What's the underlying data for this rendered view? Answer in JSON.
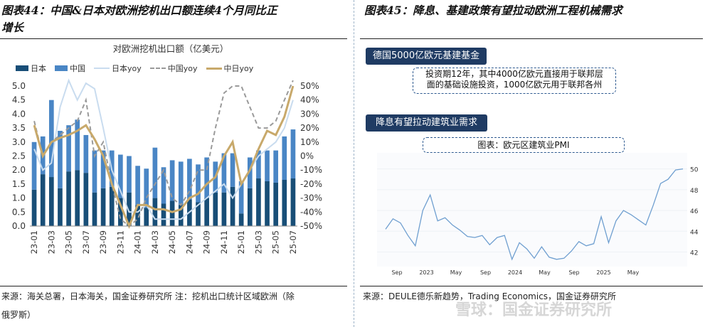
{
  "left_panel": {
    "title_line1": "图表44：中国&日本对欧洲挖机出口额连续4个月同比正",
    "title_line2": "增长",
    "source": "来源：海关总署，日本海关，国金证券研究所 注：挖机出口统计区域欧洲（除",
    "source_line2": "俄罗斯）"
  },
  "right_panel": {
    "title": "图表45：降息、基建政策有望拉动欧洲工程机械需求",
    "banner1": "德国5000亿欧元基建基金",
    "box1_line1": "投资期12年，其中4000亿欧元直接用于联邦层",
    "box1_line2": "面的基础设施投资，1000亿欧元用于联邦各州",
    "banner2": "降息有望拉动建筑业需求",
    "box2": "图表：欧元区建筑业PMI",
    "source": "来源：DEULE德乐新趋势，Trading Economics，国金证券研究所"
  },
  "watermark": "雪球：国金证券研究所",
  "colors": {
    "japan": "#184e77",
    "china": "#4a86c5",
    "japan_yoy": "#c9dcef",
    "china_yoy": "#9a9a9a",
    "sum_yoy": "#c8a96b",
    "banner": "#1f3b63",
    "pmi_line": "#6f9fd0"
  },
  "chart_data": [
    {
      "type": "bar",
      "title": "对欧洲挖机出口额（亿美元）",
      "legend": [
        "日本",
        "中国",
        "日本yoy",
        "中国yoy",
        "中日yoy"
      ],
      "categories": [
        "23-01",
        "23-02",
        "23-03",
        "23-04",
        "23-05",
        "23-06",
        "23-07",
        "23-08",
        "23-09",
        "23-10",
        "23-11",
        "23-12",
        "24-01",
        "24-02",
        "24-03",
        "24-04",
        "24-05",
        "24-06",
        "24-07",
        "24-08",
        "24-09",
        "24-10",
        "24-11",
        "24-12",
        "25-01",
        "25-02",
        "25-03",
        "25-04",
        "25-05",
        "25-06",
        "25-07"
      ],
      "x_tick_labels": [
        "23-01",
        "23-03",
        "23-05",
        "23-07",
        "23-09",
        "23-11",
        "24-01",
        "24-03",
        "24-05",
        "24-07",
        "24-09",
        "24-11",
        "25-01",
        "25-03",
        "25-05",
        "25-07"
      ],
      "series": [
        {
          "name": "日本",
          "kind": "stacked-bar",
          "axis": "left",
          "values": [
            1.3,
            1.85,
            1.75,
            1.35,
            1.95,
            2.0,
            1.9,
            1.2,
            1.35,
            1.4,
            1.0,
            1.2,
            0.75,
            0.65,
            1.0,
            0.8,
            0.9,
            0.75,
            0.95,
            0.85,
            1.0,
            1.2,
            1.2,
            1.4,
            0.45,
            1.35,
            1.7,
            1.6,
            1.55,
            1.65,
            1.7
          ]
        },
        {
          "name": "中国",
          "kind": "stacked-bar",
          "axis": "left",
          "values": [
            1.7,
            1.35,
            2.75,
            2.05,
            1.65,
            1.8,
            1.35,
            1.5,
            1.35,
            1.3,
            1.55,
            1.3,
            1.4,
            1.4,
            1.8,
            1.3,
            1.45,
            1.55,
            1.45,
            1.35,
            1.45,
            1.1,
            1.4,
            1.2,
            1.15,
            1.1,
            1.0,
            1.1,
            1.15,
            1.55,
            1.75
          ]
        },
        {
          "name": "日本yoy",
          "kind": "line",
          "axis": "right",
          "values": [
            5,
            -10,
            -5,
            35,
            55,
            40,
            52,
            48,
            20,
            -10,
            -25,
            -40,
            -40,
            -35,
            -45,
            -45,
            -45,
            -45,
            -40,
            -35,
            -30,
            -25,
            -20,
            -30,
            -20,
            -10,
            0,
            5,
            10,
            20,
            40
          ]
        },
        {
          "name": "中国yoy",
          "kind": "dashed-line",
          "axis": "right",
          "values": [
            25,
            0,
            10,
            15,
            20,
            25,
            40,
            0,
            10,
            -20,
            -45,
            -50,
            -45,
            -30,
            -20,
            -10,
            -30,
            -35,
            -25,
            -10,
            -10,
            20,
            45,
            50,
            50,
            35,
            20,
            20,
            25,
            40,
            55
          ]
        },
        {
          "name": "中日yoy",
          "kind": "line",
          "axis": "right",
          "values": [
            22,
            0,
            10,
            13,
            15,
            18,
            22,
            12,
            0,
            -20,
            -35,
            -50,
            -35,
            -35,
            -38,
            -38,
            -40,
            -38,
            -30,
            -27,
            -20,
            -15,
            0,
            10,
            -20,
            -10,
            5,
            18,
            15,
            28,
            50
          ]
        }
      ],
      "y_left": {
        "min": 0,
        "max": 5,
        "ticks": [
          "0.0",
          "0.5",
          "1.0",
          "1.5",
          "2.0",
          "2.5",
          "3.0",
          "3.5",
          "4.0",
          "4.5",
          "5.0"
        ]
      },
      "y_right": {
        "min": -50,
        "max": 50,
        "ticks": [
          "-50%",
          "-40%",
          "-30%",
          "-20%",
          "-10%",
          "0%",
          "10%",
          "20%",
          "30%",
          "40%",
          "50%"
        ]
      }
    },
    {
      "type": "line",
      "title": "欧元区建筑业PMI",
      "x_tick_labels": [
        "Sep",
        "2023",
        "May",
        "Sep",
        "2024",
        "May",
        "Sep",
        "2025",
        "May"
      ],
      "series": [
        {
          "name": "欧元区建筑业PMI",
          "values": [
            44.2,
            45.2,
            44.8,
            43.6,
            42.6,
            46.0,
            47.5,
            45.0,
            45.3,
            44.6,
            44.1,
            43.5,
            43.4,
            43.6,
            42.7,
            43.4,
            43.6,
            41.3,
            42.9,
            42.3,
            41.4,
            42.5,
            41.5,
            41.3,
            41.4,
            42.1,
            43.0,
            42.6,
            42.8,
            45.4,
            42.9,
            45.0,
            46.0,
            45.6,
            45.1,
            44.6,
            46.5,
            48.6,
            49.0,
            49.9,
            50.0
          ]
        }
      ],
      "y_axis": {
        "min": 40.6,
        "max": 51,
        "ticks": [
          "42",
          "44",
          "46",
          "48",
          "50"
        ]
      }
    }
  ]
}
